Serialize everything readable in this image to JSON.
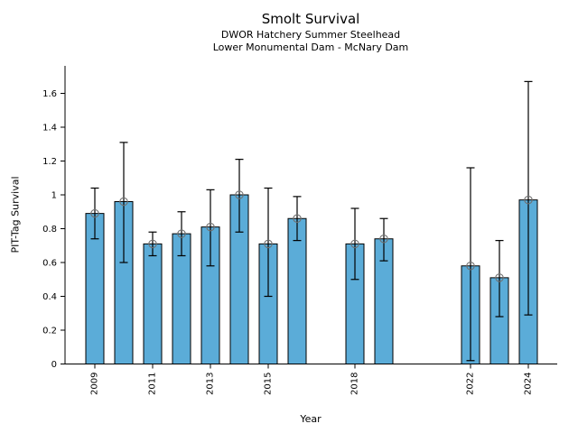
{
  "figure": {
    "background": "#ffffff"
  },
  "chart_data": {
    "type": "bar",
    "title": "Smolt Survival",
    "subtitle1": "DWOR Hatchery Summer Steelhead",
    "subtitle2": "Lower Monumental Dam - McNary Dam",
    "xlabel": "Year",
    "ylabel": "PIT-Tag Survival",
    "x": [
      2009,
      2010,
      2011,
      2012,
      2013,
      2014,
      2015,
      2016,
      2018,
      2019,
      2022,
      2023,
      2024
    ],
    "values": [
      0.89,
      0.96,
      0.71,
      0.77,
      0.81,
      1.0,
      0.71,
      0.86,
      0.71,
      0.74,
      0.58,
      0.51,
      0.97
    ],
    "error_low": [
      0.74,
      0.6,
      0.64,
      0.64,
      0.58,
      0.78,
      0.4,
      0.73,
      0.5,
      0.61,
      0.02,
      0.28,
      0.29
    ],
    "error_high": [
      1.04,
      1.31,
      0.78,
      0.9,
      1.03,
      1.21,
      1.04,
      0.99,
      0.92,
      0.86,
      1.16,
      0.73,
      1.67
    ],
    "xtick_years": [
      2009,
      2011,
      2013,
      2015,
      2018,
      2022,
      2024
    ],
    "xtick_labels": [
      "2009",
      "2011",
      "2013",
      "2015",
      "2018",
      "2022",
      "2024"
    ],
    "ytick_values": [
      0,
      0.2,
      0.4,
      0.6,
      0.8,
      1,
      1.2,
      1.4,
      1.6
    ],
    "ytick_labels": [
      "0",
      "0.2",
      "0.4",
      "0.6",
      "0.8",
      "1",
      "1.2",
      "1.4",
      "1.6"
    ],
    "xlim": [
      2008,
      2025
    ],
    "ylim": [
      0,
      1.77
    ],
    "grid": false,
    "legend": "none",
    "bar_color": "#5BACD8",
    "bar_edge_color": "#000000",
    "error_color": "#000000",
    "marker": "open-circle",
    "marker_edge_color": "#707070",
    "axis_color": "#000000"
  }
}
